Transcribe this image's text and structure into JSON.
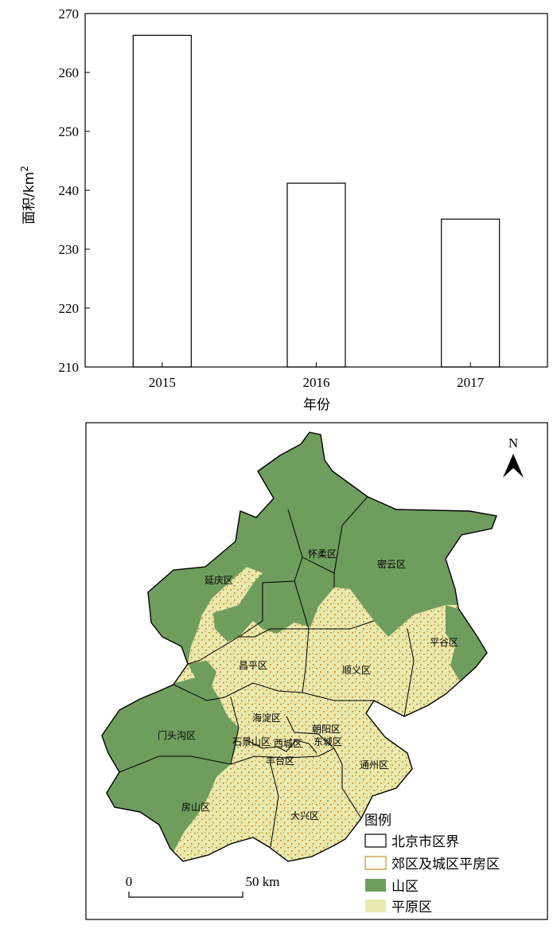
{
  "chart_data": {
    "type": "bar",
    "categories": [
      "2015",
      "2016",
      "2017"
    ],
    "values": [
      266.3,
      241.2,
      235.1
    ],
    "xlabel": "年份",
    "ylabel": "面积/km",
    "ylabel_sup": "2",
    "ylim": [
      210,
      270
    ],
    "yticks": [
      210,
      220,
      230,
      240,
      250,
      260,
      270
    ],
    "grid": false,
    "bar_fill": "#ffffff",
    "bar_stroke": "#000000"
  },
  "map": {
    "north_label": "N",
    "districts": [
      "延庆区",
      "怀柔区",
      "密云区",
      "平谷区",
      "昌平区",
      "顺义区",
      "门头沟区",
      "海淀区",
      "朝阳区",
      "石景山区",
      "西城区",
      "东城区",
      "丰台区",
      "通州区",
      "房山区",
      "大兴区"
    ],
    "legend": {
      "title": "图例",
      "items": [
        {
          "label": "北京市区界",
          "swatch": "outline",
          "color": "#000000"
        },
        {
          "label": "郊区及城区平房区",
          "swatch": "outline",
          "color": "#c8902a"
        },
        {
          "label": "山区",
          "swatch": "fill",
          "color": "#6f9d5e"
        },
        {
          "label": "平原区",
          "swatch": "fill",
          "color": "#eaeab0"
        }
      ]
    },
    "scale": {
      "start": "0",
      "end": "50 km"
    },
    "colors": {
      "mountain": "#6f9d5e",
      "plain": "#eaeab0",
      "bungalow": "#c8902a",
      "boundary": "#000000"
    }
  }
}
